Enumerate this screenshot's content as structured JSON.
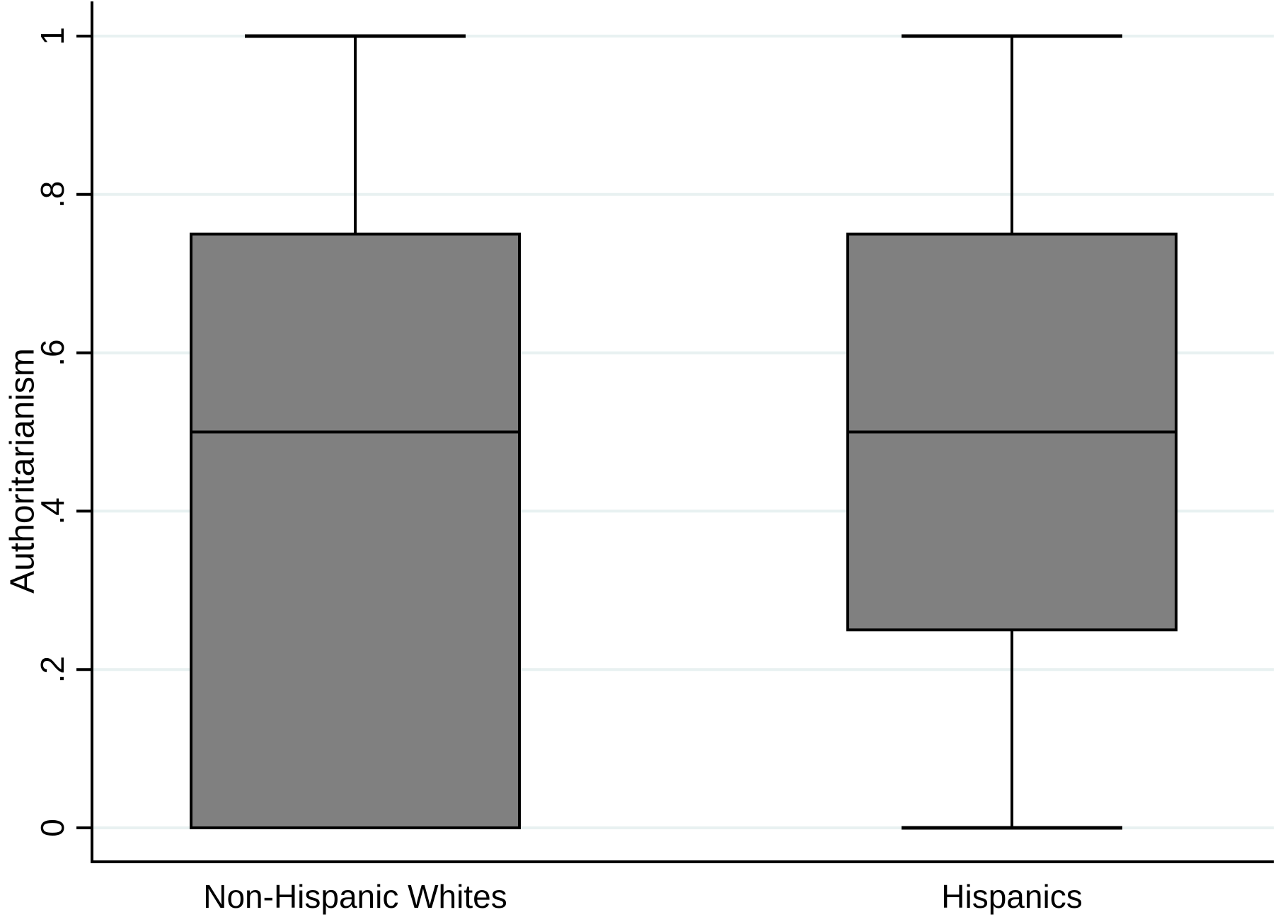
{
  "figure": {
    "background": "#ffffff"
  },
  "chart_data": {
    "type": "box",
    "title": "",
    "xlabel": "",
    "ylabel": "Authoritarianism",
    "ylim": [
      0,
      1
    ],
    "yticks": [
      0,
      0.2,
      0.4,
      0.6,
      0.8,
      1
    ],
    "ytick_labels": [
      "0",
      ".2",
      ".4",
      ".6",
      ".8",
      "1"
    ],
    "ytick_label_angle": -90,
    "categories": [
      "Non-Hispanic Whites",
      "Hispanics"
    ],
    "series": [
      {
        "name": "Non-Hispanic Whites",
        "lower_whisker": 0,
        "q1": 0,
        "median": 0.5,
        "q3": 0.75,
        "upper_whisker": 1
      },
      {
        "name": "Hispanics",
        "lower_whisker": 0,
        "q1": 0.25,
        "median": 0.5,
        "q3": 0.75,
        "upper_whisker": 1
      }
    ],
    "grid": true,
    "legend_position": "none",
    "colors": {
      "box_fill": "#808080",
      "box_border": "#000000",
      "median_line": "#000000",
      "whisker_line": "#000000",
      "axis_line": "#000000",
      "grid_line": "#e8f1f1",
      "text": "#000000"
    }
  }
}
